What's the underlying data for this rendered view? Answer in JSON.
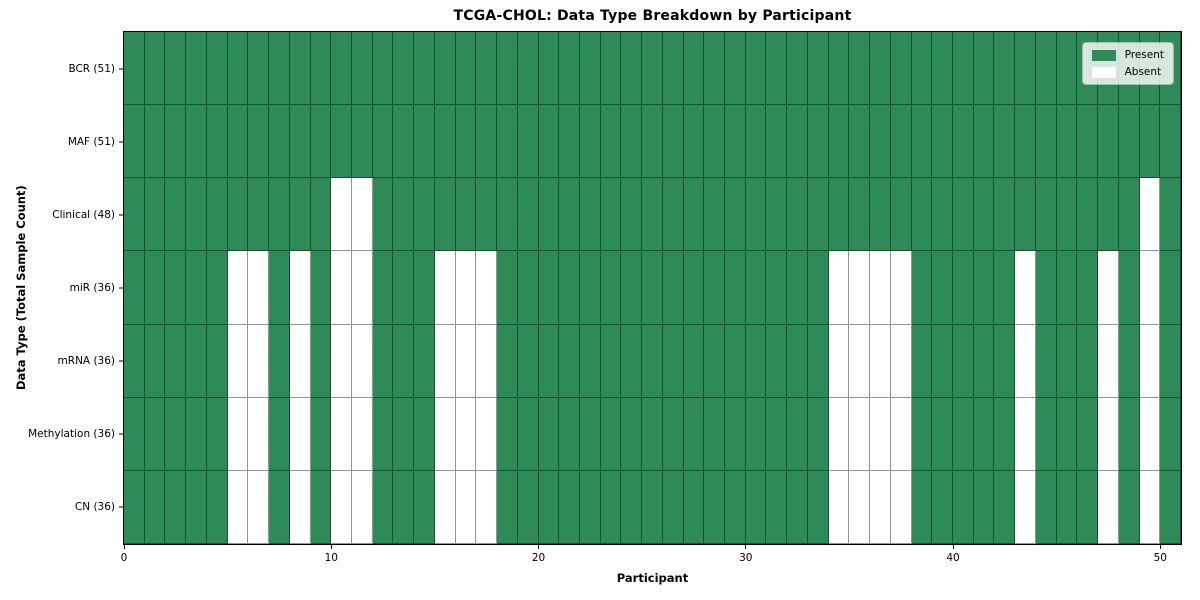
{
  "chart_data": {
    "type": "heatmap",
    "title": "TCGA-CHOL: Data Type Breakdown by Participant",
    "xlabel": "Participant",
    "ylabel": "Data Type (Total Sample Count)",
    "x_ticks": [
      0,
      10,
      20,
      30,
      40,
      50
    ],
    "x_range": [
      0,
      51
    ],
    "n_participants": 51,
    "grid": true,
    "legend_position": "upper right",
    "colors": {
      "present": "#2e8b57",
      "absent": "#ffffff",
      "gridline": "rgba(0,0,0,0.42)",
      "legend_background": "rgba(255,255,255,0.8)",
      "legend_border": "#b3b3b3"
    },
    "rows": [
      {
        "label": "BCR (51)",
        "data_type": "BCR",
        "present_count": 51,
        "absent_participants": []
      },
      {
        "label": "MAF (51)",
        "data_type": "MAF",
        "present_count": 51,
        "absent_participants": []
      },
      {
        "label": "Clinical (48)",
        "data_type": "Clinical",
        "present_count": 48,
        "absent_participants": [
          10,
          11,
          49
        ]
      },
      {
        "label": "miR (36)",
        "data_type": "miR",
        "present_count": 36,
        "absent_participants": [
          5,
          6,
          8,
          10,
          11,
          15,
          16,
          17,
          34,
          35,
          36,
          37,
          43,
          47,
          49
        ]
      },
      {
        "label": "mRNA (36)",
        "data_type": "mRNA",
        "present_count": 36,
        "absent_participants": [
          5,
          6,
          8,
          10,
          11,
          15,
          16,
          17,
          34,
          35,
          36,
          37,
          43,
          47,
          49
        ]
      },
      {
        "label": "Methylation (36)",
        "data_type": "Methylation",
        "present_count": 36,
        "absent_participants": [
          5,
          6,
          8,
          10,
          11,
          15,
          16,
          17,
          34,
          35,
          36,
          37,
          43,
          47,
          49
        ]
      },
      {
        "label": "CN (36)",
        "data_type": "CN",
        "present_count": 36,
        "absent_participants": [
          5,
          6,
          8,
          10,
          11,
          15,
          16,
          17,
          34,
          35,
          36,
          37,
          43,
          47,
          49
        ]
      }
    ],
    "legend": [
      {
        "label": "Present",
        "color": "#2e8b57"
      },
      {
        "label": "Absent",
        "color": "#ffffff"
      }
    ]
  }
}
